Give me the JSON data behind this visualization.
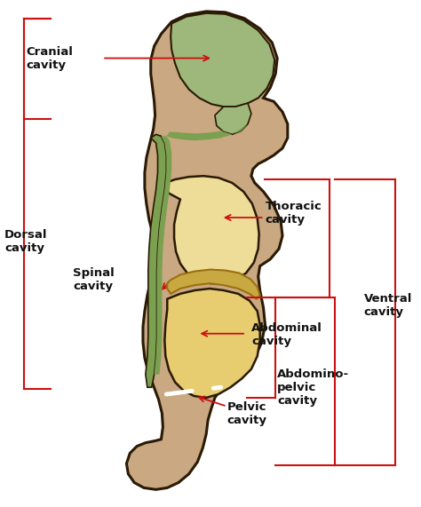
{
  "bg_color": "#ffffff",
  "skin_color": "#c9a882",
  "outline_color": "#2a1a05",
  "cranial_color": "#9db87a",
  "spinal_color": "#7aa050",
  "thoracic_color": "#eedd99",
  "abdominal_color": "#e8cc70",
  "diaphragm_color": "#c8a840",
  "bracket_color": "#cc1111",
  "arrow_color": "#cc1111",
  "text_color": "#111111",
  "figsize": [
    4.74,
    5.71
  ],
  "dpi": 100,
  "labels": {
    "cranial": "Cranial\ncavity",
    "dorsal": "Dorsal\ncavity",
    "spinal": "Spinal\ncavity",
    "thoracic": "Thoracic\ncavity",
    "ventral": "Ventral\ncavity",
    "abdominal": "Abdominal\ncavity",
    "abdominopelvic": "Abdomino-\npelvic\ncavity",
    "pelvic": "Pelvic\ncavity"
  }
}
